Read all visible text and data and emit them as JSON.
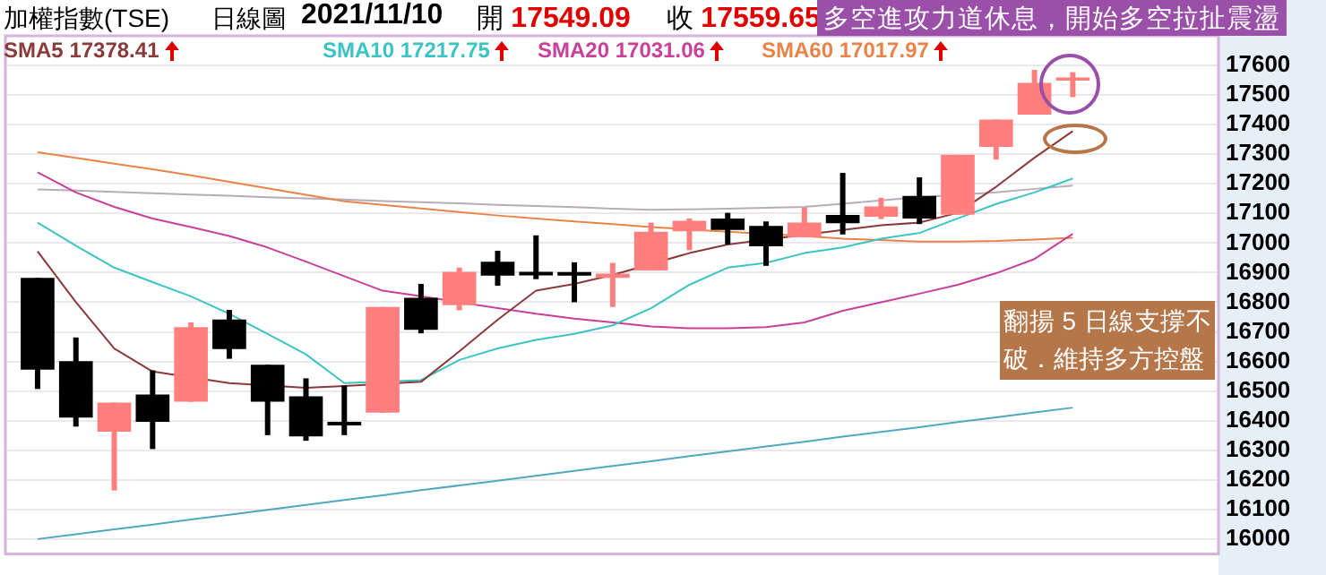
{
  "chart_data": {
    "type": "candlestick",
    "title": "加權指數(TSE)",
    "subtitle": "日線圖",
    "categories": [
      null,
      null,
      null,
      null,
      null,
      null,
      null,
      null,
      null,
      null,
      null,
      null,
      null,
      null,
      null,
      null,
      null,
      null,
      null,
      null,
      null,
      null,
      null,
      null,
      null,
      null,
      null,
      null
    ],
    "ohlc": [
      [
        16882,
        16882,
        16507,
        16572
      ],
      [
        16601,
        16681,
        16380,
        16410
      ],
      [
        16363,
        16461,
        16164,
        16461
      ],
      [
        16488,
        16570,
        16304,
        16396
      ],
      [
        16464,
        16732,
        16464,
        16716
      ],
      [
        16742,
        16774,
        16609,
        16642
      ],
      [
        16589,
        16589,
        16351,
        16464
      ],
      [
        16482,
        16543,
        16332,
        16347
      ],
      [
        16396,
        16519,
        16351,
        16384
      ],
      [
        16427,
        16784,
        16427,
        16784
      ],
      [
        16815,
        16862,
        16695,
        16707
      ],
      [
        16790,
        16917,
        16773,
        16903
      ],
      [
        16937,
        16974,
        16856,
        16890
      ],
      [
        16903,
        17026,
        16878,
        16891
      ],
      [
        16902,
        16935,
        16800,
        16890
      ],
      [
        16882,
        16933,
        16784,
        16897
      ],
      [
        16907,
        17069,
        16907,
        17038
      ],
      [
        17040,
        17083,
        16976,
        17075
      ],
      [
        17083,
        17102,
        16995,
        17044
      ],
      [
        17058,
        17073,
        16923,
        16989
      ],
      [
        17020,
        17120,
        17020,
        17069
      ],
      [
        17095,
        17237,
        17029,
        17067
      ],
      [
        17089,
        17153,
        17081,
        17124
      ],
      [
        17159,
        17222,
        17064,
        17083
      ],
      [
        17096,
        17298,
        17096,
        17298
      ],
      [
        17325,
        17417,
        17282,
        17417
      ],
      [
        17434,
        17585,
        17434,
        17541
      ],
      [
        17549.09,
        17577,
        17493,
        17559.65
      ]
    ],
    "colors": [
      "#000000",
      "#000000",
      "#ff7f7f",
      "#000000",
      "#ff7f7f",
      "#000000",
      "#000000",
      "#000000",
      "#000000",
      "#ff7f7f",
      "#000000",
      "#ff7f7f",
      "#000000",
      "#000000",
      "#000000",
      "#ff7f7f",
      "#ff7f7f",
      "#ff7f7f",
      "#000000",
      "#000000",
      "#ff7f7f",
      "#000000",
      "#ff7f7f",
      "#000000",
      "#ff7f7f",
      "#ff7f7f",
      "#ff7f7f",
      "#ff7f7f"
    ],
    "series": [
      {
        "type": "line",
        "name": "SMA5",
        "color": "#8b3a3a",
        "values": [
          16972,
          16800,
          16644,
          16566,
          null,
          16527,
          null,
          16511,
          16517,
          null,
          16531,
          16634,
          16741,
          16839,
          16862,
          16892,
          null,
          16966,
          16995,
          null,
          null,
          17044,
          17060,
          17069,
          17102,
          17190,
          17288,
          17378
        ]
      },
      {
        "type": "line",
        "name": "SMA10",
        "color": "#3cc4c4",
        "values": [
          17069,
          16991,
          16917,
          16868,
          16820,
          16761,
          16693,
          16624,
          16527,
          null,
          16537,
          16605,
          16644,
          16673,
          16693,
          16722,
          16780,
          16859,
          16917,
          16933,
          16966,
          16985,
          17015,
          17034,
          17083,
          17132,
          17171,
          17218
        ]
      },
      {
        "type": "line",
        "name": "SMA20",
        "color": "#c8409a",
        "values": [
          17239,
          17171,
          17122,
          17083,
          17054,
          17024,
          16985,
          16937,
          16888,
          16839,
          16820,
          null,
          16780,
          16761,
          16745,
          16732,
          16718,
          16712,
          16712,
          16716,
          16732,
          16771,
          16800,
          16829,
          16859,
          16898,
          16946,
          17031
        ]
      },
      {
        "type": "line",
        "name": "SMA60",
        "color": "#e8844a",
        "values": [
          17307,
          17288,
          17268,
          17249,
          17229,
          17207,
          17185,
          17163,
          17141,
          17129,
          17117,
          17105,
          17093,
          17083,
          17073,
          17064,
          17054,
          17046,
          17038,
          null,
          17024,
          17015,
          17010,
          17005,
          17005,
          17007,
          17012,
          17018
        ]
      },
      {
        "type": "line",
        "color": "#b8acb8",
        "values": [
          17181,
          17177,
          17173,
          17168,
          17164,
          17160,
          17155,
          17151,
          17147,
          17142,
          17138,
          17134,
          17129,
          17125,
          17121,
          17116,
          17112,
          17114,
          17116,
          17119,
          17122,
          17133,
          17144,
          17155,
          null,
          17171,
          17183,
          17194
        ]
      },
      {
        "type": "line",
        "color": "#50a8bc",
        "values": [
          16000,
          16016,
          16033,
          16049,
          16066,
          16082,
          16099,
          16115,
          16132,
          16148,
          16165,
          16181,
          16197,
          16214,
          16230,
          16247,
          16263,
          16280,
          16296,
          16313,
          16329,
          16346,
          16362,
          16378,
          16395,
          16411,
          16428,
          16444
        ]
      }
    ],
    "ylim": [
      15950,
      17700
    ],
    "yticks": [
      16000,
      16100,
      16200,
      16300,
      16400,
      16500,
      16600,
      16700,
      16800,
      16900,
      17000,
      17100,
      17200,
      17300,
      17400,
      17500,
      17600
    ],
    "grid": "y",
    "legend": "top left",
    "annotations": [
      "2021/11/10",
      "開 17549.09",
      "收 17559.65",
      "多空進攻力道休息，開始多空拉扯震盪",
      "翻揚 5 日線支撐不破．維持多方控盤",
      "17378.41",
      "17217.75",
      "17031.06",
      "17017.97"
    ]
  }
}
